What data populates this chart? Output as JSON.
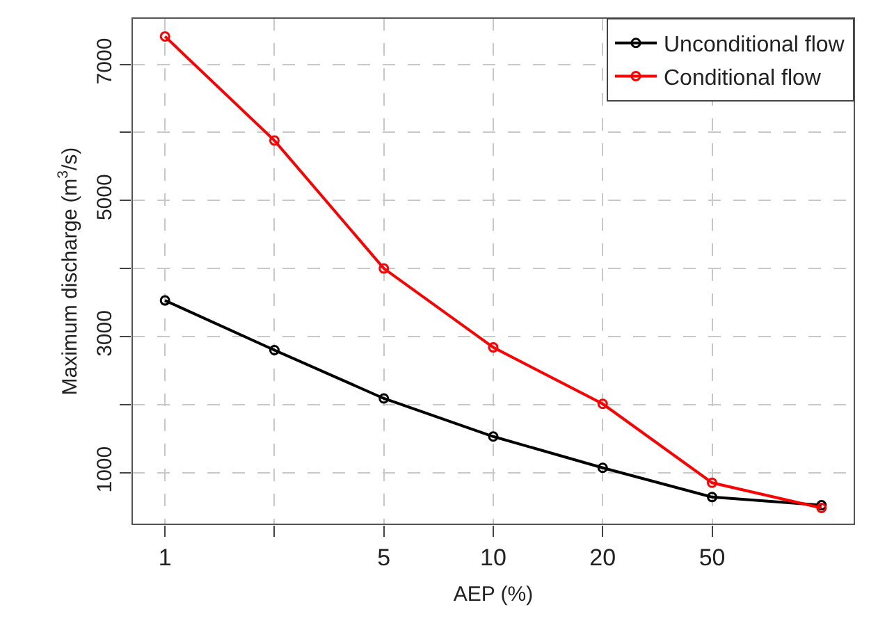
{
  "chart_data": {
    "type": "line",
    "xlabel": "AEP (%)",
    "ylabel": "Maximum discharge (m$^{3}$/s)",
    "categories": [
      "1",
      null,
      "5",
      "10",
      "20",
      "50",
      null
    ],
    "series": [
      {
        "name": "Unconditional flow",
        "color": "#000000",
        "values": [
          3530,
          2800,
          2090,
          1530,
          1070,
          640,
          520
        ]
      },
      {
        "name": "Conditional flow",
        "color": "#ff0000",
        "values": [
          7410,
          5880,
          4000,
          2840,
          2010,
          850,
          480
        ]
      }
    ],
    "ylim": [
      240,
      7680
    ],
    "yticks": [
      1000,
      {
        "value": 2000,
        "label": null
      },
      3000,
      {
        "value": 4000,
        "label": null
      },
      5000,
      {
        "value": 6000,
        "label": null
      },
      7000
    ],
    "grid": true,
    "legend": "top right",
    "marker": "circle",
    "line_style": "solid"
  }
}
